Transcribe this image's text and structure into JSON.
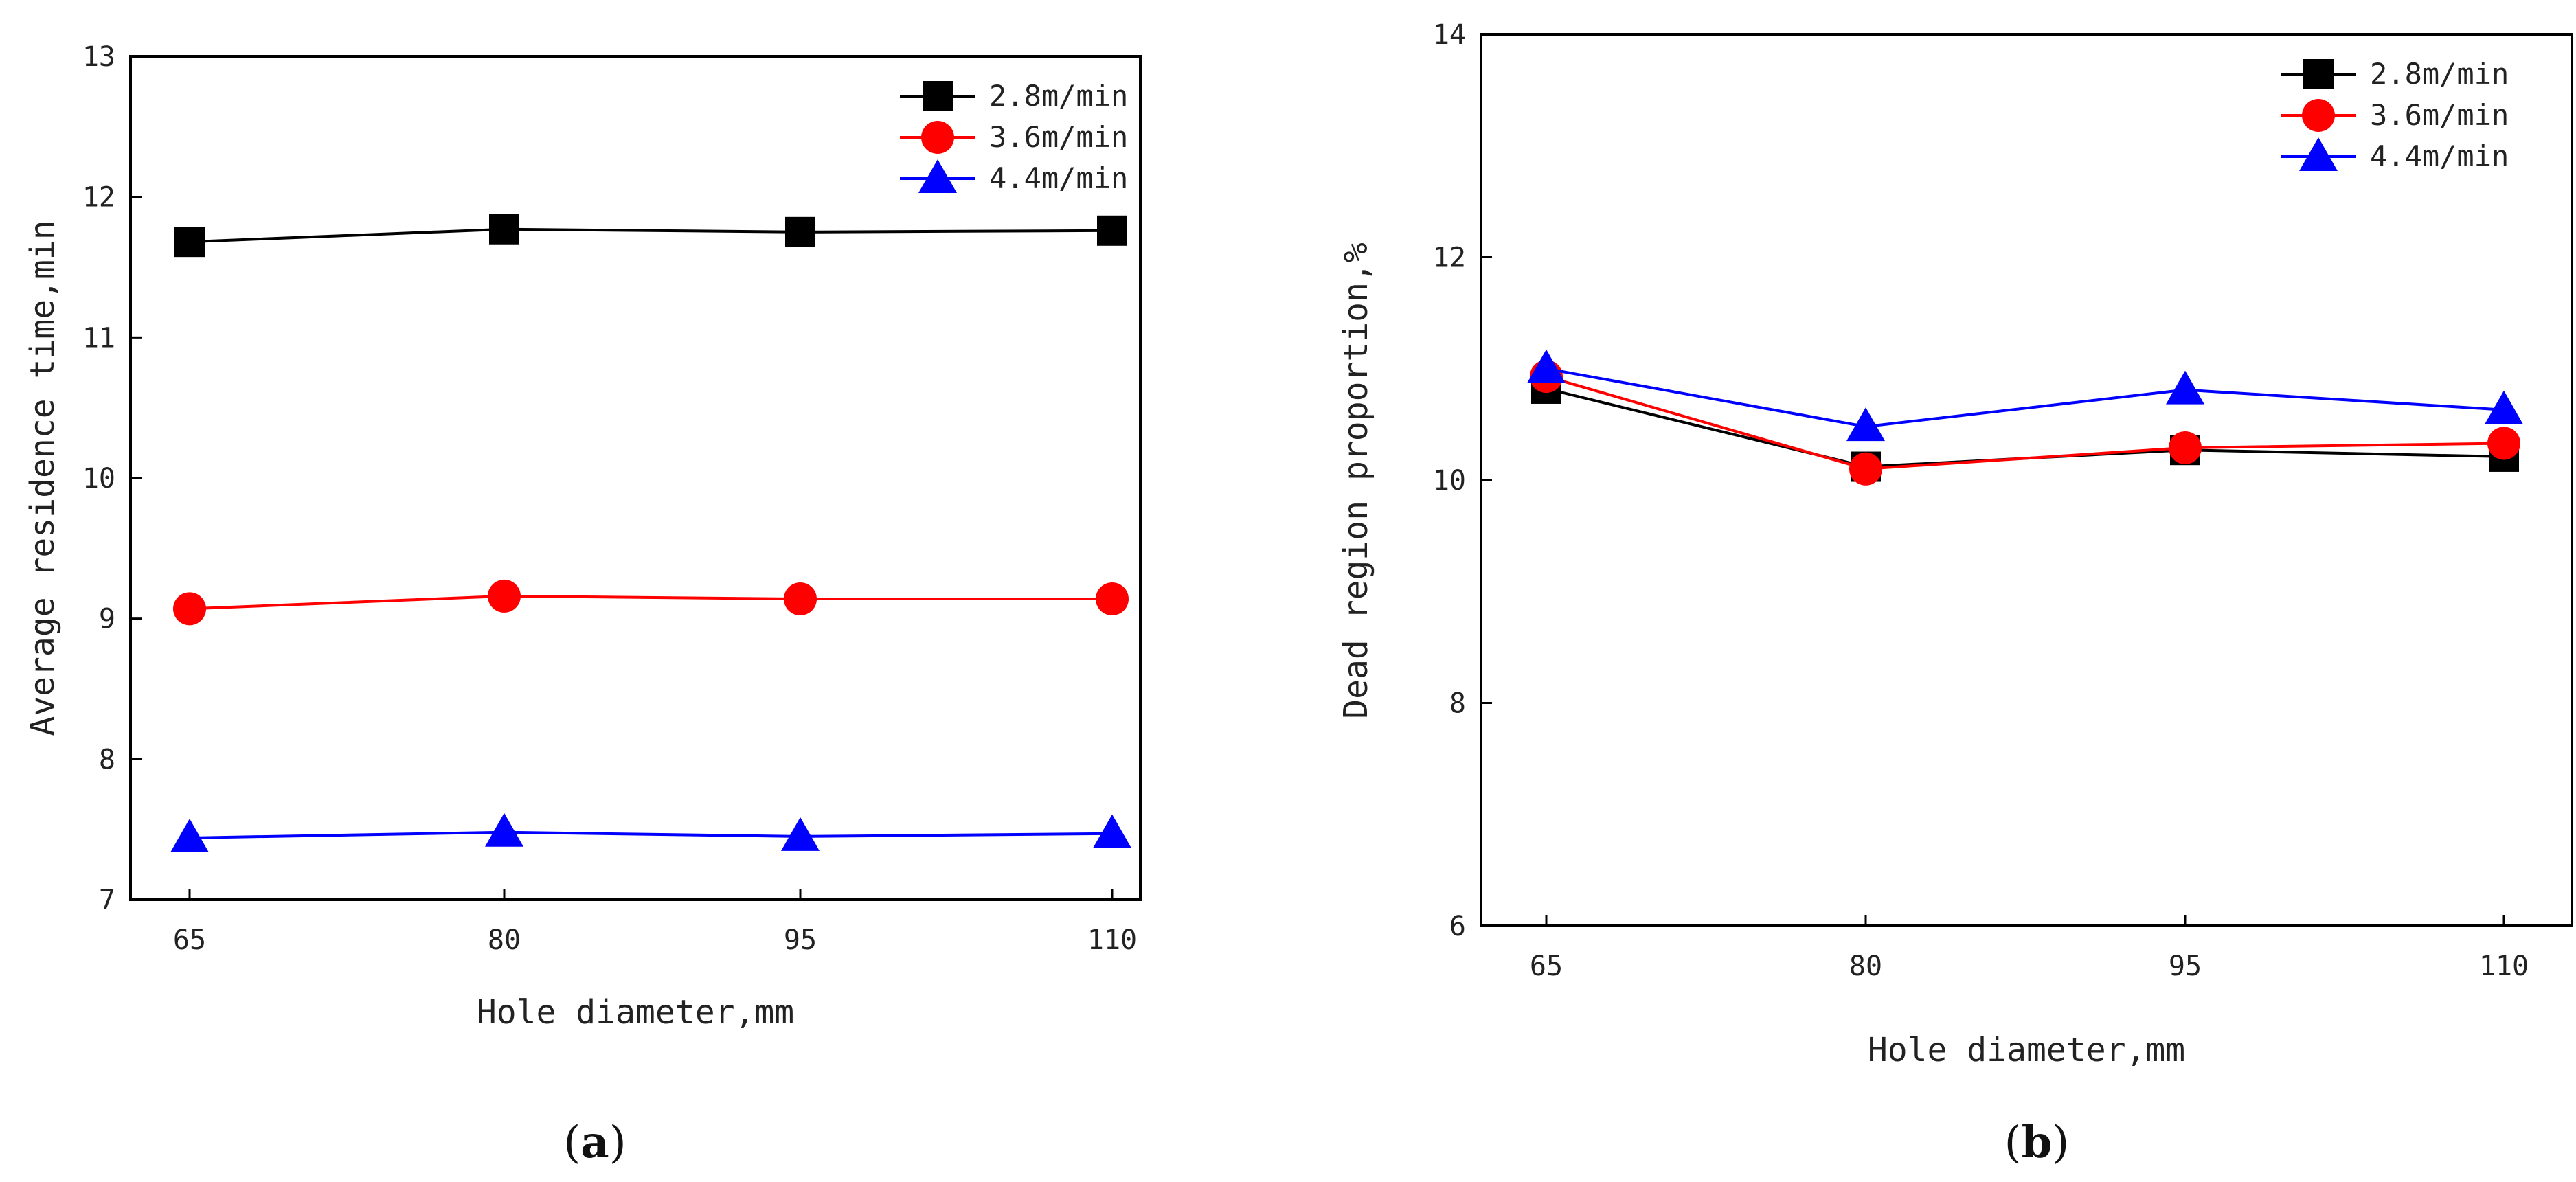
{
  "chart_data": [
    {
      "type": "line",
      "panel_label": "a",
      "xlabel": "Hole diameter,mm",
      "ylabel": "Average residence time,min",
      "categories": [
        "65",
        "80",
        "95",
        "110"
      ],
      "ylim": [
        7,
        13
      ],
      "yticks": [
        "7",
        "8",
        "9",
        "10",
        "11",
        "12",
        "13"
      ],
      "legend_position": "top-right",
      "series": [
        {
          "name": "2.8m/min",
          "marker": "square",
          "color": "#000000",
          "values": [
            11.68,
            11.77,
            11.75,
            11.76
          ]
        },
        {
          "name": "3.6m/min",
          "marker": "circle",
          "color": "#ff0000",
          "values": [
            9.07,
            9.16,
            9.14,
            9.14
          ]
        },
        {
          "name": "4.4m/min",
          "marker": "triangle",
          "color": "#0000ff",
          "values": [
            7.44,
            7.48,
            7.45,
            7.47
          ]
        }
      ]
    },
    {
      "type": "line",
      "panel_label": "b",
      "xlabel": "Hole diameter,mm",
      "ylabel": "Dead region proportion,%",
      "categories": [
        "65",
        "80",
        "95",
        "110"
      ],
      "ylim": [
        6,
        14
      ],
      "yticks": [
        "6",
        "8",
        "10",
        "12",
        "14"
      ],
      "legend_position": "top-right",
      "series": [
        {
          "name": "2.8m/min",
          "marker": "square",
          "color": "#000000",
          "values": [
            10.82,
            10.12,
            10.27,
            10.21
          ]
        },
        {
          "name": "3.6m/min",
          "marker": "circle",
          "color": "#ff0000",
          "values": [
            10.93,
            10.1,
            10.29,
            10.33
          ]
        },
        {
          "name": "4.4m/min",
          "marker": "triangle",
          "color": "#0000ff",
          "values": [
            11.0,
            10.48,
            10.81,
            10.63
          ]
        }
      ]
    }
  ]
}
